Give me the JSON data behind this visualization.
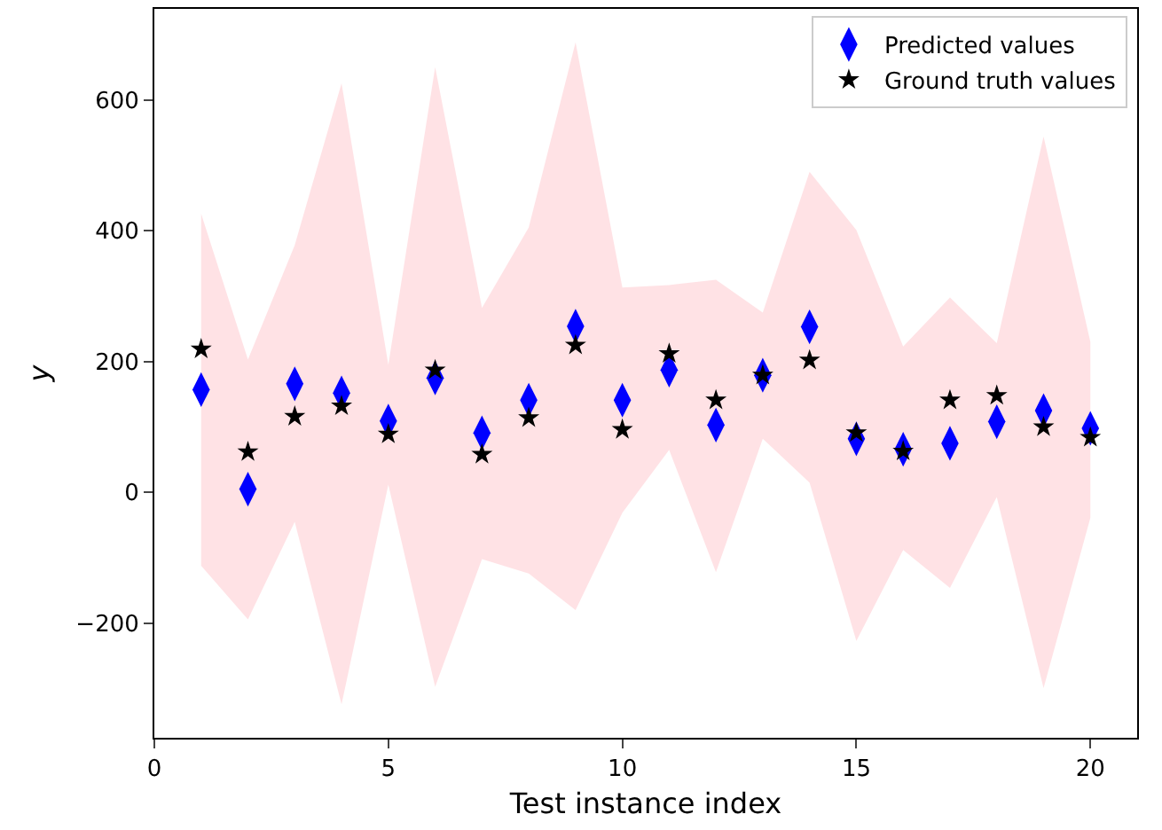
{
  "chart_data": {
    "type": "scatter",
    "xlabel": "Test instance index",
    "ylabel": "y",
    "x": [
      1,
      2,
      3,
      4,
      5,
      6,
      7,
      8,
      9,
      10,
      11,
      12,
      13,
      14,
      15,
      16,
      17,
      18,
      19,
      20
    ],
    "series": [
      {
        "name": "Predicted values",
        "color": "#0000ff",
        "marker": "diamond",
        "values": [
          157,
          5,
          166,
          152,
          109,
          175,
          91,
          141,
          254,
          141,
          187,
          103,
          179,
          253,
          82,
          66,
          75,
          108,
          125,
          98
        ],
        "lower": [
          -112,
          -194,
          -45,
          -324,
          12,
          -297,
          -102,
          -124,
          -180,
          -31,
          65,
          -122,
          82,
          15,
          -227,
          -88,
          -146,
          -7,
          -299,
          -39
        ],
        "upper": [
          426,
          203,
          378,
          625,
          195,
          650,
          282,
          405,
          688,
          313,
          317,
          325,
          275,
          490,
          401,
          223,
          298,
          228,
          544,
          230
        ]
      },
      {
        "name": "Ground truth values",
        "color": "#000000",
        "marker": "star",
        "values": [
          219,
          62,
          116,
          132,
          89,
          187,
          58,
          114,
          225,
          96,
          212,
          141,
          179,
          202,
          91,
          63,
          141,
          148,
          100,
          84
        ]
      }
    ],
    "xlim": [
      0,
      21
    ],
    "xticks": [
      0,
      5,
      10,
      15,
      20
    ],
    "ylim": [
      -375,
      739
    ],
    "yticks": [
      {
        "value": -200,
        "label": "−200"
      },
      0,
      200,
      400,
      600
    ],
    "grid": false,
    "legend": "top right"
  }
}
